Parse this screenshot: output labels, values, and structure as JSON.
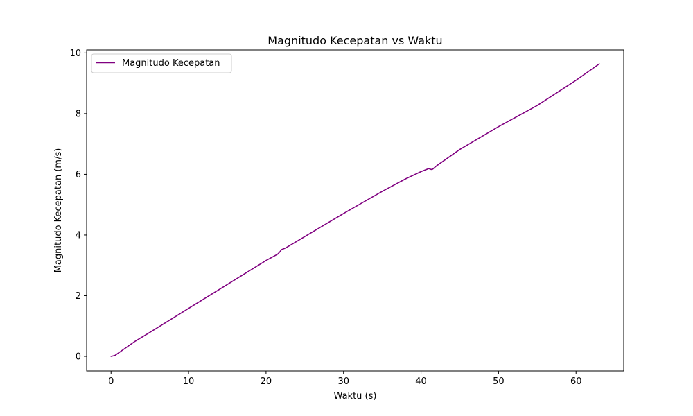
{
  "chart_data": {
    "type": "line",
    "title": "Magnitudo Kecepatan vs Waktu",
    "xlabel": "Waktu (s)",
    "ylabel": "Magnitudo Kecepatan (m/s)",
    "xlim": [
      -3.15,
      66.15
    ],
    "ylim": [
      -0.48,
      10.1
    ],
    "xticks": [
      0,
      10,
      20,
      30,
      40,
      50,
      60
    ],
    "yticks": [
      0,
      2,
      4,
      6,
      8,
      10
    ],
    "grid": false,
    "legend": {
      "position": "upper-left"
    },
    "series": [
      {
        "name": "Magnitudo Kecepatan",
        "color": "#800080",
        "x": [
          0,
          0.5,
          1,
          2,
          3,
          5,
          10,
          15,
          20,
          21.5,
          21.8,
          22,
          22.5,
          25,
          30,
          35,
          38,
          40,
          41,
          41.3,
          41.5,
          42,
          45,
          50,
          55,
          60,
          63
        ],
        "y": [
          0,
          0.03,
          0.12,
          0.3,
          0.48,
          0.79,
          1.58,
          2.37,
          3.16,
          3.37,
          3.45,
          3.52,
          3.57,
          3.95,
          4.71,
          5.44,
          5.85,
          6.09,
          6.19,
          6.16,
          6.17,
          6.28,
          6.82,
          7.57,
          8.27,
          9.1,
          9.64
        ]
      }
    ]
  }
}
